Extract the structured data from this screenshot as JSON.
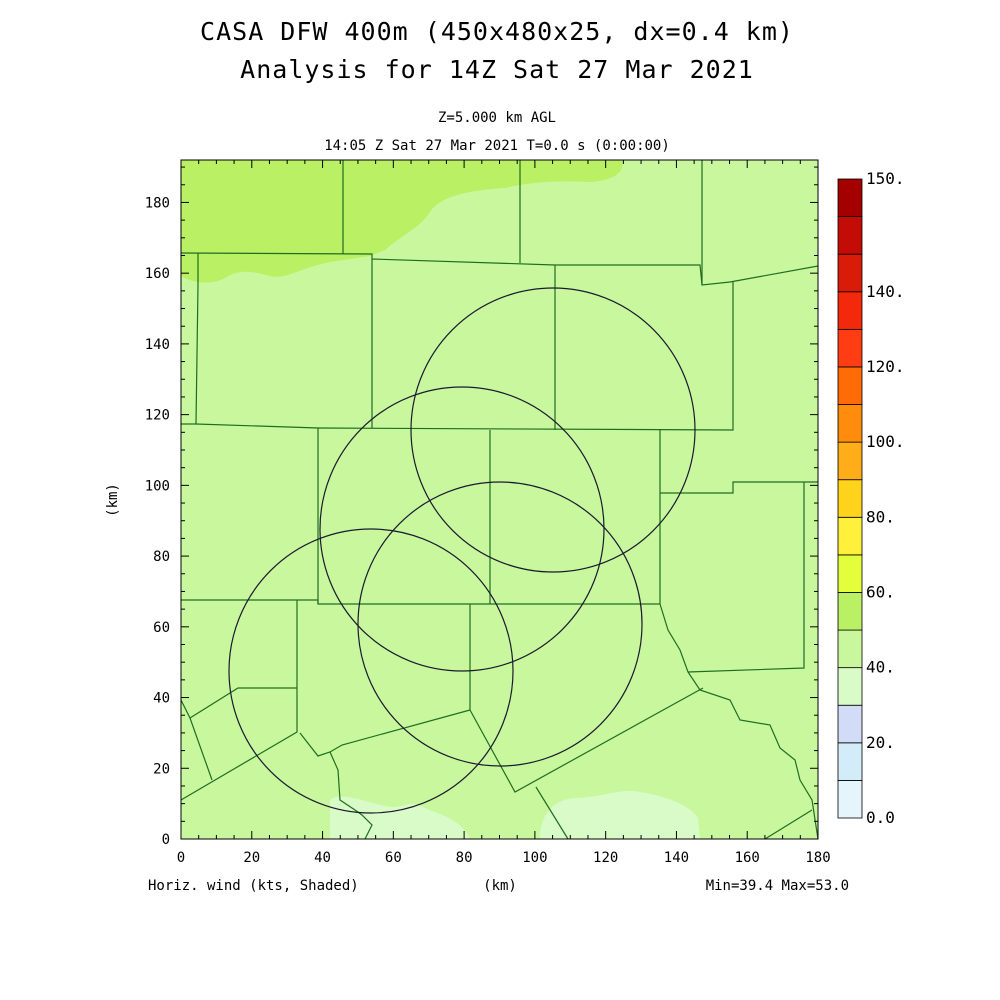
{
  "title": {
    "line1": "CASA DFW 400m (450x480x25, dx=0.4 km)",
    "line2": "Analysis for 14Z Sat 27 Mar 2021"
  },
  "subtitle": {
    "level": "Z=5.000 km AGL",
    "time": "14:05 Z Sat 27 Mar 2021   T=0.0 s (0:00:00)"
  },
  "axes": {
    "xlabel": "(km)",
    "ylabel": "(km)",
    "xlim": [
      0,
      180
    ],
    "ylim": [
      0,
      192
    ],
    "xticks": [
      "0",
      "20",
      "40",
      "60",
      "80",
      "100",
      "120",
      "140",
      "160",
      "180"
    ],
    "yticks": [
      "0",
      "20",
      "40",
      "60",
      "80",
      "100",
      "120",
      "140",
      "160",
      "180"
    ]
  },
  "footer": {
    "field": "Horiz. wind (kts, Shaded)",
    "xunit": "(km)",
    "stats": "Min=39.4 Max=53.0"
  },
  "colorbar": {
    "labels": [
      "0.0",
      "20.",
      "40.",
      "60.",
      "80.",
      "100.",
      "120.",
      "140.",
      "150."
    ],
    "colors": [
      "#e6f5fb",
      "#d2ecfa",
      "#d2dcf6",
      "#d9fbc7",
      "#c8f79e",
      "#b9f064",
      "#e3ff3c",
      "#fff03c",
      "#ffd21c",
      "#ffad18",
      "#ff8c0c",
      "#fe6c08",
      "#ff3c12",
      "#f4280a",
      "#d91c09",
      "#c40c06",
      "#a50000"
    ]
  },
  "chart_data": {
    "type": "heatmap",
    "field": "Horizontal wind speed (kts)",
    "min": 39.4,
    "max": 53.0,
    "radar_rings": [
      {
        "center_km": [
          55,
          48
        ],
        "radius_km": 40
      },
      {
        "center_km": [
          80,
          88
        ],
        "radius_km": 40
      },
      {
        "center_km": [
          106,
          116
        ],
        "radius_km": 40
      },
      {
        "center_km": [
          90,
          62
        ],
        "radius_km": 40
      }
    ]
  }
}
